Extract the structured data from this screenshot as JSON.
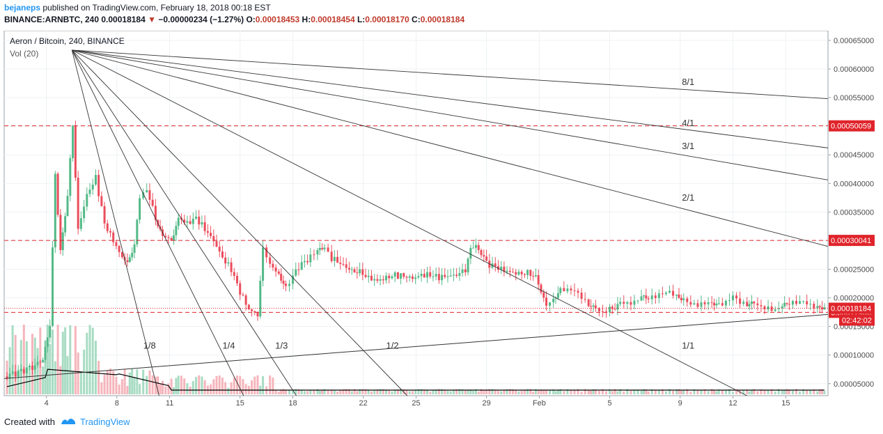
{
  "header": {
    "user": "bejaneps",
    "published_text": "published on TradingView.com, February 18, 2018 00:18 EST",
    "symbol_label": "BINANCE:ARNBTC, 240",
    "last_price": "0.00018184",
    "change": "−0.00000234 (−1.27%)",
    "o_label": "O:",
    "o_value": "0.00018453",
    "h_label": "H:",
    "h_value": "0.00018454",
    "l_label": "L:",
    "l_value": "0.00018170",
    "c_label": "C:",
    "c_value": "0.00018184"
  },
  "legend": {
    "symbol": "Aeron / Bitcoin, 240, BINANCE",
    "volume": "Vol (20)"
  },
  "footer": {
    "created_with": "Created with",
    "brand": "TradingView"
  },
  "colors": {
    "up": "#53b987",
    "down": "#eb4d5c",
    "vol_up": "#a8dcc3",
    "vol_down": "#f5b5bb",
    "dashed_line": "#e0242b",
    "price_tag": "#e0242b",
    "fan_line": "#333333",
    "brand": "#2196f3"
  },
  "chart_data": {
    "type": "candlestick",
    "ylim": [
      2.9e-05,
      0.000667
    ],
    "y_ticks": [
      "0.00005000",
      "0.00010000",
      "0.00015000",
      "0.00020000",
      "0.00025000",
      "0.00030000",
      "0.00035000",
      "0.00040000",
      "0.00045000",
      "0.00050000",
      "0.00055000",
      "0.00060000",
      "0.00065000"
    ],
    "y_tick_values": [
      5e-05,
      0.0001,
      0.00015,
      0.0002,
      0.00025,
      0.0003,
      0.00035,
      0.0004,
      0.00045,
      0.0005,
      0.00055,
      0.0006,
      0.00065
    ],
    "x_ticks": [
      "4",
      "8",
      "11",
      "15",
      "18",
      "22",
      "25",
      "29",
      "Feb",
      "5",
      "9",
      "12",
      "15"
    ],
    "x_tick_days": [
      4,
      8,
      11,
      15,
      18,
      22,
      25,
      29,
      32,
      36,
      40,
      43,
      46
    ],
    "x_day_range": [
      1.6,
      48.4
    ],
    "close_points": [
      [
        1.6,
        6.3e-05
      ],
      [
        2.4,
        7e-05
      ],
      [
        3.2,
        8e-05
      ],
      [
        3.8,
        9e-05
      ],
      [
        4.2,
        0.00015
      ],
      [
        4.5,
        0.00042
      ],
      [
        4.8,
        0.00028
      ],
      [
        5.2,
        0.00038
      ],
      [
        5.5,
        0.0005
      ],
      [
        5.8,
        0.00032
      ],
      [
        6.3,
        0.00038
      ],
      [
        6.8,
        0.00041
      ],
      [
        7.3,
        0.00033
      ],
      [
        7.8,
        0.0003
      ],
      [
        8.3,
        0.00027
      ],
      [
        8.6,
        0.00026
      ],
      [
        9.0,
        0.00029
      ],
      [
        9.3,
        0.00038
      ],
      [
        9.7,
        0.00039
      ],
      [
        10.2,
        0.00034
      ],
      [
        10.6,
        0.00031
      ],
      [
        11.1,
        0.0003
      ],
      [
        11.5,
        0.00034
      ],
      [
        12.0,
        0.00033
      ],
      [
        12.5,
        0.00034
      ],
      [
        13.0,
        0.00032
      ],
      [
        13.5,
        0.0003
      ],
      [
        14.0,
        0.00027
      ],
      [
        14.5,
        0.00025
      ],
      [
        15.0,
        0.00021
      ],
      [
        15.5,
        0.00018
      ],
      [
        16.0,
        0.00017
      ],
      [
        16.3,
        0.00029
      ],
      [
        16.7,
        0.00026
      ],
      [
        17.2,
        0.00024
      ],
      [
        17.6,
        0.00022
      ],
      [
        18.0,
        0.00024
      ],
      [
        18.5,
        0.00026
      ],
      [
        19.0,
        0.00027
      ],
      [
        19.4,
        0.00028
      ],
      [
        19.8,
        0.00029
      ],
      [
        20.2,
        0.00027
      ],
      [
        20.7,
        0.00026
      ],
      [
        21.2,
        0.00025
      ],
      [
        21.8,
        0.000245
      ],
      [
        22.3,
        0.000235
      ],
      [
        22.8,
        0.00023
      ],
      [
        23.3,
        0.000235
      ],
      [
        23.8,
        0.00024
      ],
      [
        24.3,
        0.000238
      ],
      [
        24.8,
        0.000234
      ],
      [
        25.3,
        0.00024
      ],
      [
        25.8,
        0.00024
      ],
      [
        26.3,
        0.000236
      ],
      [
        26.8,
        0.000238
      ],
      [
        27.3,
        0.00024
      ],
      [
        27.8,
        0.00025
      ],
      [
        28.1,
        0.000285
      ],
      [
        28.4,
        0.00029
      ],
      [
        28.7,
        0.00028
      ],
      [
        29.0,
        0.00026
      ],
      [
        29.5,
        0.000255
      ],
      [
        30.0,
        0.000248
      ],
      [
        30.5,
        0.000244
      ],
      [
        31.0,
        0.000242
      ],
      [
        31.5,
        0.000244
      ],
      [
        31.8,
        0.000235
      ],
      [
        32.1,
        0.00021
      ],
      [
        32.4,
        0.00019
      ],
      [
        32.8,
        0.0002
      ],
      [
        33.2,
        0.000215
      ],
      [
        33.6,
        0.000212
      ],
      [
        34.0,
        0.00021
      ],
      [
        34.4,
        0.0002
      ],
      [
        34.8,
        0.00019
      ],
      [
        35.2,
        0.000185
      ],
      [
        35.6,
        0.000175
      ],
      [
        36.0,
        0.00018
      ],
      [
        36.3,
        0.000185
      ],
      [
        36.6,
        0.00019
      ],
      [
        37.0,
        0.00019
      ],
      [
        37.4,
        0.000195
      ],
      [
        37.8,
        0.000205
      ],
      [
        38.2,
        0.0002
      ],
      [
        38.6,
        0.0002
      ],
      [
        39.0,
        0.000205
      ],
      [
        39.4,
        0.00021
      ],
      [
        39.8,
        0.000205
      ],
      [
        40.2,
        0.0002
      ],
      [
        40.6,
        0.00019
      ],
      [
        41.0,
        0.000185
      ],
      [
        41.4,
        0.000188
      ],
      [
        41.8,
        0.00019
      ],
      [
        42.2,
        0.00019
      ],
      [
        42.6,
        0.000195
      ],
      [
        43.0,
        0.000205
      ],
      [
        43.4,
        0.00019
      ],
      [
        43.8,
        0.000185
      ],
      [
        44.2,
        0.00019
      ],
      [
        44.6,
        0.000185
      ],
      [
        45.0,
        0.000185
      ],
      [
        45.4,
        0.00018
      ],
      [
        45.8,
        0.000185
      ],
      [
        46.2,
        0.000188
      ],
      [
        46.6,
        0.00019
      ],
      [
        47.0,
        0.000195
      ],
      [
        47.4,
        0.00019
      ],
      [
        47.8,
        0.000185
      ],
      [
        48.2,
        0.000182
      ]
    ],
    "horizontal_levels": [
      {
        "value": 0.00050059,
        "label": "0.00050059"
      },
      {
        "value": 0.00030041,
        "label": "0.00030041"
      },
      {
        "value": 0.00017466,
        "label": "0.00017466"
      }
    ],
    "current_price": {
      "value": 0.00018184,
      "label": "0.00018184",
      "timer": "02:42:02"
    },
    "gann_fan": {
      "origin": {
        "day": 5.45,
        "price": 0.000633
      },
      "lines": [
        {
          "label": "8/1",
          "end_day": 48.4,
          "end_price": 0.000548
        },
        {
          "label": "4/1",
          "end_day": 48.4,
          "end_price": 0.000462
        },
        {
          "label": "3/1",
          "end_day": 48.4,
          "end_price": 0.000406
        },
        {
          "label": "2/1",
          "end_day": 48.4,
          "end_price": 0.00029
        },
        {
          "label": "1/1",
          "end_day": 43.8,
          "end_price": 2.9e-05
        },
        {
          "label": "1/2",
          "end_day": 24.5,
          "end_price": 2.9e-05
        },
        {
          "label": "1/3",
          "end_day": 18.2,
          "end_price": 2.9e-05
        },
        {
          "label": "1/4",
          "end_day": 15.2,
          "end_price": 2.9e-05
        },
        {
          "label": "1/8",
          "end_day": 10.4,
          "end_price": 2.9e-05
        }
      ],
      "label_positions": [
        {
          "label": "8/1",
          "day": 40.1,
          "price": 0.000572
        },
        {
          "label": "4/1",
          "day": 40.1,
          "price": 0.0005
        },
        {
          "label": "3/1",
          "day": 40.1,
          "price": 0.00046
        },
        {
          "label": "2/1",
          "day": 40.1,
          "price": 0.00037
        },
        {
          "label": "1/1",
          "day": 40.1,
          "price": 0.000111
        },
        {
          "label": "1/2",
          "day": 23.3,
          "price": 0.000111
        },
        {
          "label": "1/3",
          "day": 17.0,
          "price": 0.000111
        },
        {
          "label": "1/4",
          "day": 14.0,
          "price": 0.000111
        },
        {
          "label": "1/8",
          "day": 9.5,
          "price": 0.000111
        }
      ]
    },
    "trendline": {
      "start_day": 1.6,
      "start_price": 5.9e-05,
      "end_day": 48.4,
      "end_price": 0.000171
    }
  }
}
